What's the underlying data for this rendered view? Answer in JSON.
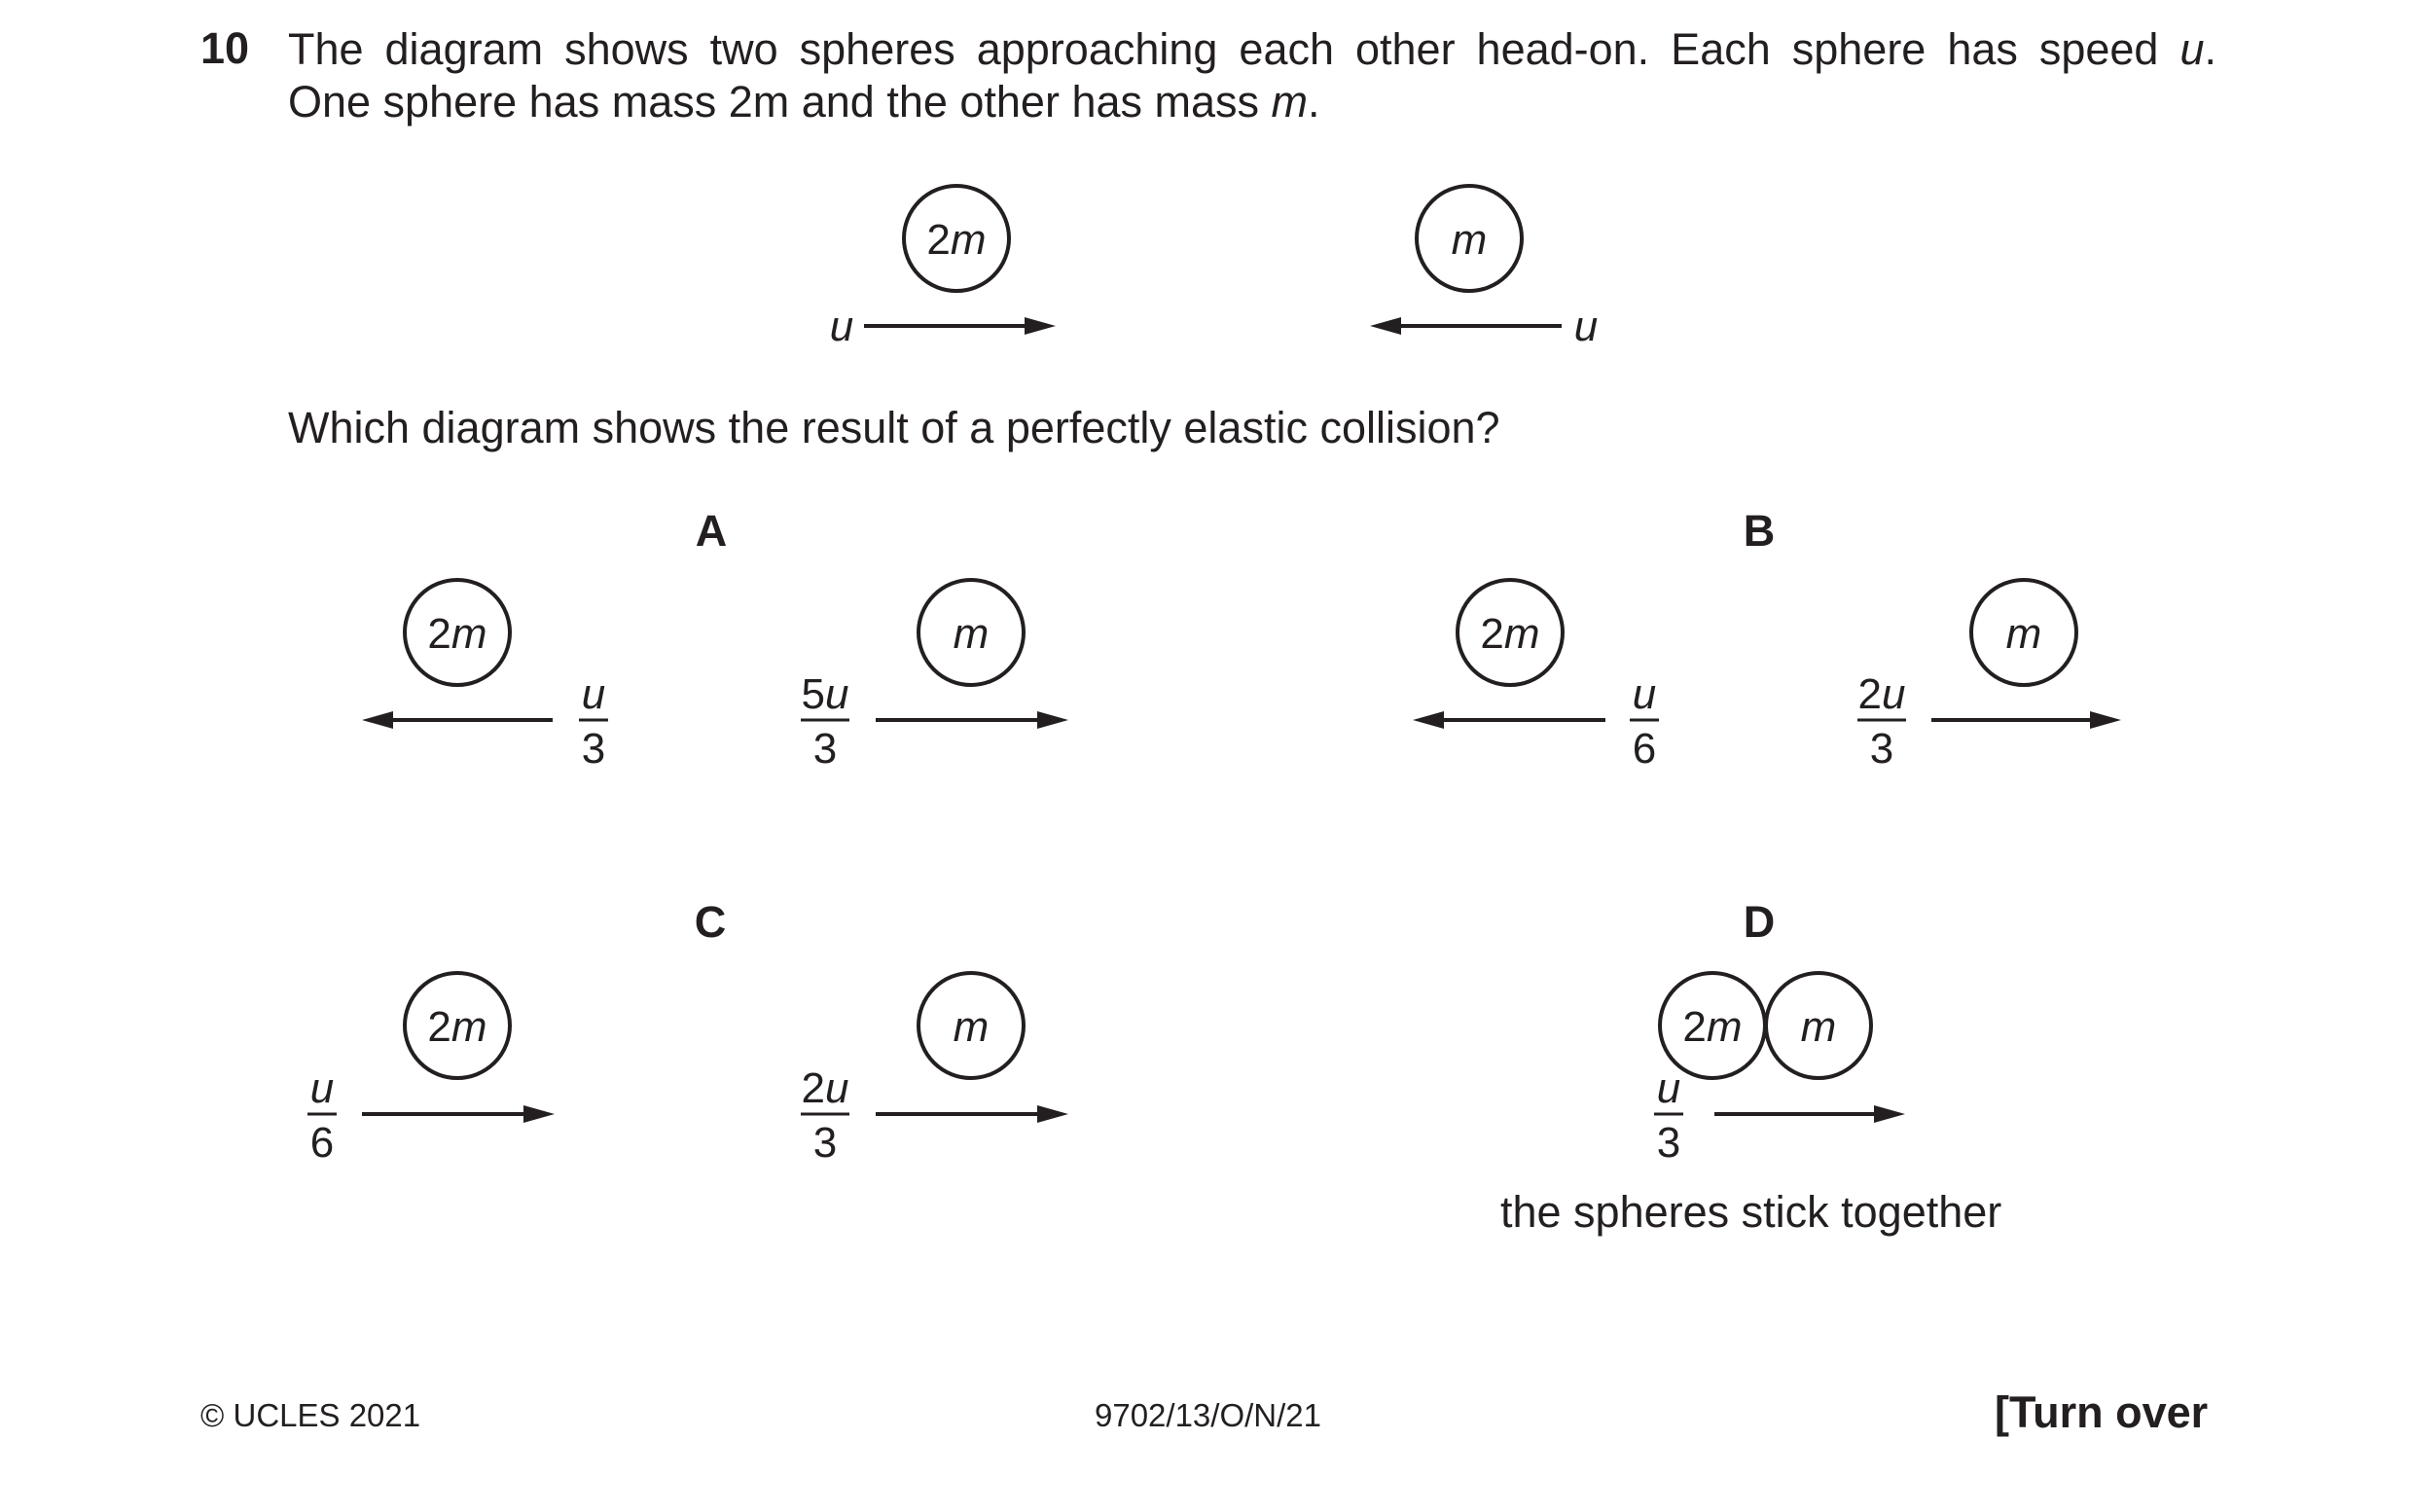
{
  "question": {
    "number": "10",
    "stem_line1": "The diagram shows two spheres approaching each other head-on. Each sphere has speed u.",
    "stem_line2": "One sphere has mass 2m and the other has mass m.",
    "prompt": "Which diagram shows the result of a perfectly elastic collision?"
  },
  "initial": {
    "spheres": [
      {
        "mass": "2m",
        "direction": "right",
        "speed": "u"
      },
      {
        "mass": "m",
        "direction": "left",
        "speed": "u"
      }
    ]
  },
  "options": [
    {
      "letter": "A",
      "spheres": [
        {
          "mass": "2m",
          "direction": "left",
          "speed_num": "u",
          "speed_den": "3"
        },
        {
          "mass": "m",
          "direction": "right",
          "speed_num": "5u",
          "speed_den": "3"
        }
      ]
    },
    {
      "letter": "B",
      "spheres": [
        {
          "mass": "2m",
          "direction": "left",
          "speed_num": "u",
          "speed_den": "6"
        },
        {
          "mass": "m",
          "direction": "right",
          "speed_num": "2u",
          "speed_den": "3"
        }
      ]
    },
    {
      "letter": "C",
      "spheres": [
        {
          "mass": "2m",
          "direction": "right",
          "speed_num": "u",
          "speed_den": "6"
        },
        {
          "mass": "m",
          "direction": "right",
          "speed_num": "2u",
          "speed_den": "3"
        }
      ]
    },
    {
      "letter": "D",
      "combined": {
        "masses": [
          "2m",
          "m"
        ],
        "direction": "right",
        "speed_num": "u",
        "speed_den": "3"
      },
      "note": "the spheres stick together"
    }
  ],
  "footer": {
    "copyright": "© UCLES 2021",
    "code": "9702/13/O/N/21",
    "turn": "[Turn over"
  }
}
